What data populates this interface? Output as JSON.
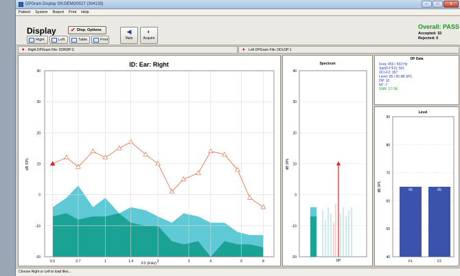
{
  "window": {
    "title": "DPGram Display  SN:DEMO0027 (304133)",
    "min": "–",
    "max": "□",
    "close": "x"
  },
  "menu": [
    "Patient",
    "System",
    "Report",
    "Print",
    "Help"
  ],
  "toolbar": {
    "display_label": "Display",
    "disp_options": "Disp. Options",
    "right": "Right",
    "left": "Left",
    "table": "Table",
    "print": "Print",
    "main": "Main",
    "acquire": "Acquire",
    "overall": "Overall: PASS",
    "accepted": "Accepted: 32",
    "rejected": "Rejected: 0"
  },
  "files": {
    "right": "Right DPGram File: DDRDP:2",
    "left": "Left DPGram File: DDLDP:1"
  },
  "status": "Choose Right or Left to load files...",
  "colors": {
    "noise_light": "#5fc9d6",
    "noise_dark": "#1aa394",
    "dp_line": "#e8734e",
    "dp_first": "#e02020",
    "level_bar": "#3b53aa",
    "pass": "#1a9a1a"
  },
  "dpdata": {
    "title": "DP Data",
    "lines": [
      "Freq: 455 / 553 Hz",
      "Sqrt(F1*F2): 501",
      "2F1-F2: 357",
      "Level: 65 / 65 dB SPL",
      "DP: 10",
      "Nf: -7",
      "SNR: 17  OK"
    ]
  },
  "chart_data": [
    {
      "type": "line",
      "title": "ID:      Ear: Right",
      "xlabel": "F2 (KHz)",
      "ylabel": "dB SPL",
      "ylim": [
        -20,
        40
      ],
      "yticks": [
        -20,
        -10,
        0,
        10,
        20,
        30,
        40
      ],
      "xticks": [
        "0.5",
        "0.7",
        "1",
        "1.4",
        "2",
        "3",
        "4",
        "6",
        "8"
      ],
      "x": [
        0.5,
        0.6,
        0.7,
        0.85,
        1.0,
        1.2,
        1.4,
        1.7,
        2.0,
        2.4,
        2.8,
        3.4,
        4.0,
        4.8,
        5.7,
        6.7,
        8.0
      ],
      "series": [
        {
          "values": [
            10,
            12,
            9,
            14,
            12,
            15,
            17,
            13,
            10,
            1,
            5,
            7,
            14,
            13,
            8,
            -1,
            -4
          ]
        },
        {
          "values": [
            -4,
            -1,
            3,
            -4,
            -1,
            -6,
            -4,
            -5,
            -7,
            -9,
            -6,
            -7,
            -9,
            -9,
            -12,
            -13,
            -13
          ]
        },
        {
          "values": [
            -7,
            -6,
            -8,
            -7,
            -7,
            -6,
            -9,
            -10,
            -10,
            -15,
            -16,
            -15,
            -20,
            -15,
            -16,
            -16,
            -17
          ]
        }
      ],
      "grid": true
    },
    {
      "type": "bar",
      "title": "Spectrum",
      "ylabel": "dB SPL",
      "xlabel": "DP",
      "ylim": [
        -20,
        40
      ],
      "yticks": [
        -20,
        -10,
        0,
        10,
        20,
        30,
        40
      ],
      "noise_block": [
        -4,
        -7
      ],
      "dp_value": 10
    },
    {
      "type": "bar",
      "title": "Level",
      "ylabel": "dB SPL",
      "categories": [
        "F1",
        "F2"
      ],
      "values": [
        65,
        65
      ],
      "data_labels": [
        "65",
        "65"
      ],
      "ylim": [
        40,
        90
      ],
      "yticks": [
        40,
        50,
        60,
        70,
        80,
        90
      ]
    }
  ]
}
